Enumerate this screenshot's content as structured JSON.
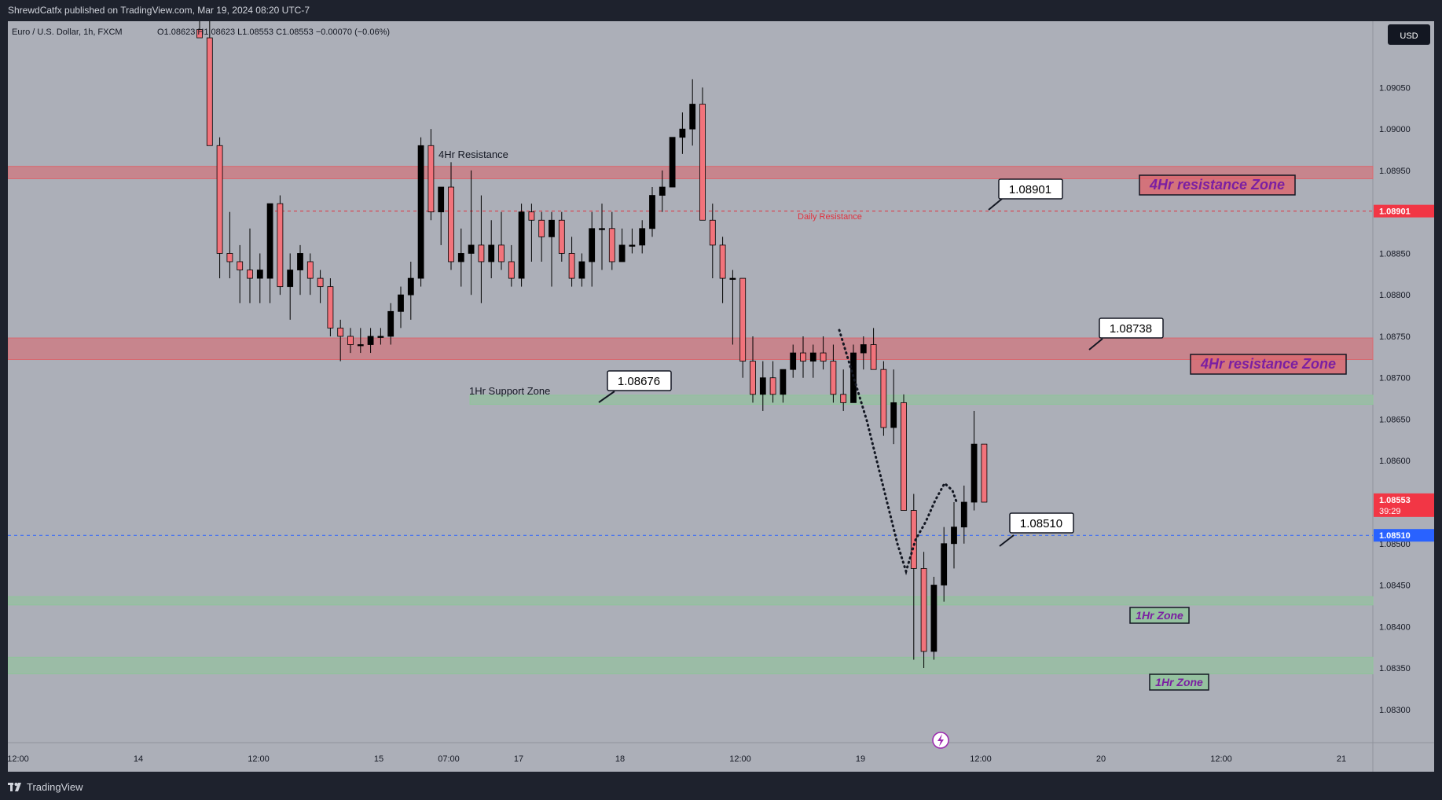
{
  "header": {
    "published": "ShrewdCatfx published on TradingView.com, Mar 19, 2024 08:20 UTC-7",
    "symbol": "Euro / U.S. Dollar, 1h, FXCM",
    "ohlc": "O1.08623  H1.08623  L1.08553  C1.08553  −0.00070 (−0.06%)",
    "currency": "USD"
  },
  "footer": {
    "brand": "TradingView"
  },
  "colors": {
    "bull": "#000000",
    "bear": "#f2737b",
    "resistance": "#d96970",
    "support": "#8fc49a",
    "blue_line": "#2962ff",
    "zone_text": "#7b1fa2"
  },
  "chart_data": {
    "type": "candlestick",
    "title": "Euro / U.S. Dollar, 1h, FXCM",
    "ylim": [
      1.0826,
      1.0913
    ],
    "y_ticks": [
      "1.09050",
      "1.09000",
      "1.08950",
      "1.08900",
      "1.08850",
      "1.08800",
      "1.08750",
      "1.08700",
      "1.08650",
      "1.08600",
      "1.08550",
      "1.08500",
      "1.08450",
      "1.08400",
      "1.08350",
      "1.08300"
    ],
    "x_ticks": [
      "12:00",
      "14",
      "12:00",
      "15",
      "07:00",
      "17",
      "18",
      "12:00",
      "19",
      "12:00",
      "20",
      "12:00",
      "21"
    ],
    "price_tags": [
      {
        "label": "1.08901",
        "price": 1.08901,
        "color": "#f23645"
      },
      {
        "label": "1.08553",
        "sub": "39:29",
        "price": 1.08553,
        "color": "#f23645"
      },
      {
        "label": "1.08510",
        "price": 1.0851,
        "color": "#2962ff"
      }
    ],
    "zones": [
      {
        "label": "4Hr resistance Zone",
        "top": 1.08955,
        "bottom": 1.0894,
        "type": "resistance",
        "tag": "4Hr resistance Zone"
      },
      {
        "label": "4Hr resistance Zone",
        "top": 1.08748,
        "bottom": 1.08722,
        "type": "resistance",
        "tag": "4Hr resistance Zone"
      },
      {
        "label": "1Hr Support Zone",
        "top": 1.08679,
        "bottom": 1.08668,
        "type": "support",
        "tag": ""
      },
      {
        "label": "1Hr Zone",
        "top": 1.08436,
        "bottom": 1.08426,
        "type": "support",
        "tag": "1Hr Zone"
      },
      {
        "label": "1Hr Zone",
        "top": 1.08363,
        "bottom": 1.08343,
        "type": "support",
        "tag": "1Hr Zone"
      }
    ],
    "annotations": {
      "resistance_4hr_text": "4Hr Resistance",
      "daily_resistance_text": "Daily Resistance",
      "support_1hr_text": "1Hr Support Zone",
      "callouts": [
        "1.08901",
        "1.08738",
        "1.08676",
        "1.08510"
      ]
    },
    "candles": [
      {
        "o": 1.0912,
        "h": 1.0913,
        "l": 1.0911,
        "c": 1.0911
      },
      {
        "o": 1.0911,
        "h": 1.0913,
        "l": 1.0898,
        "c": 1.0898
      },
      {
        "o": 1.0898,
        "h": 1.0899,
        "l": 1.0882,
        "c": 1.0885
      },
      {
        "o": 1.0885,
        "h": 1.089,
        "l": 1.0882,
        "c": 1.0884
      },
      {
        "o": 1.0884,
        "h": 1.0886,
        "l": 1.0879,
        "c": 1.0883
      },
      {
        "o": 1.0883,
        "h": 1.0888,
        "l": 1.0879,
        "c": 1.0882
      },
      {
        "o": 1.0882,
        "h": 1.0885,
        "l": 1.0879,
        "c": 1.0883
      },
      {
        "o": 1.0882,
        "h": 1.0891,
        "l": 1.0879,
        "c": 1.0891
      },
      {
        "o": 1.0891,
        "h": 1.0892,
        "l": 1.088,
        "c": 1.0881
      },
      {
        "o": 1.0881,
        "h": 1.0885,
        "l": 1.0877,
        "c": 1.0883
      },
      {
        "o": 1.0883,
        "h": 1.0886,
        "l": 1.088,
        "c": 1.0885
      },
      {
        "o": 1.0884,
        "h": 1.0885,
        "l": 1.088,
        "c": 1.0882
      },
      {
        "o": 1.0882,
        "h": 1.0883,
        "l": 1.0879,
        "c": 1.0881
      },
      {
        "o": 1.0881,
        "h": 1.0882,
        "l": 1.0875,
        "c": 1.0876
      },
      {
        "o": 1.0876,
        "h": 1.0877,
        "l": 1.0872,
        "c": 1.0875
      },
      {
        "o": 1.0875,
        "h": 1.0876,
        "l": 1.0873,
        "c": 1.0874
      },
      {
        "o": 1.0874,
        "h": 1.0876,
        "l": 1.0873,
        "c": 1.0874
      },
      {
        "o": 1.0874,
        "h": 1.0876,
        "l": 1.0873,
        "c": 1.0875
      },
      {
        "o": 1.0875,
        "h": 1.0876,
        "l": 1.0874,
        "c": 1.0875
      },
      {
        "o": 1.0875,
        "h": 1.0879,
        "l": 1.0874,
        "c": 1.0878
      },
      {
        "o": 1.0878,
        "h": 1.0881,
        "l": 1.0876,
        "c": 1.088
      },
      {
        "o": 1.088,
        "h": 1.0884,
        "l": 1.0877,
        "c": 1.0882
      },
      {
        "o": 1.0882,
        "h": 1.0899,
        "l": 1.0881,
        "c": 1.0898
      },
      {
        "o": 1.0898,
        "h": 1.09,
        "l": 1.0889,
        "c": 1.089
      },
      {
        "o": 1.089,
        "h": 1.0893,
        "l": 1.0886,
        "c": 1.0893
      },
      {
        "o": 1.0893,
        "h": 1.0896,
        "l": 1.0883,
        "c": 1.0884
      },
      {
        "o": 1.0884,
        "h": 1.0888,
        "l": 1.0881,
        "c": 1.0885
      },
      {
        "o": 1.0885,
        "h": 1.0895,
        "l": 1.088,
        "c": 1.0886
      },
      {
        "o": 1.0886,
        "h": 1.0892,
        "l": 1.0879,
        "c": 1.0884
      },
      {
        "o": 1.0884,
        "h": 1.0889,
        "l": 1.0882,
        "c": 1.0886
      },
      {
        "o": 1.0886,
        "h": 1.089,
        "l": 1.0883,
        "c": 1.0884
      },
      {
        "o": 1.0884,
        "h": 1.0886,
        "l": 1.0881,
        "c": 1.0882
      },
      {
        "o": 1.0882,
        "h": 1.0891,
        "l": 1.0881,
        "c": 1.089
      },
      {
        "o": 1.089,
        "h": 1.0891,
        "l": 1.0884,
        "c": 1.0889
      },
      {
        "o": 1.0889,
        "h": 1.089,
        "l": 1.0884,
        "c": 1.0887
      },
      {
        "o": 1.0887,
        "h": 1.089,
        "l": 1.0881,
        "c": 1.0889
      },
      {
        "o": 1.0889,
        "h": 1.089,
        "l": 1.0884,
        "c": 1.0885
      },
      {
        "o": 1.0885,
        "h": 1.0887,
        "l": 1.0881,
        "c": 1.0882
      },
      {
        "o": 1.0882,
        "h": 1.0885,
        "l": 1.0881,
        "c": 1.0884
      },
      {
        "o": 1.0884,
        "h": 1.089,
        "l": 1.0881,
        "c": 1.0888
      },
      {
        "o": 1.0888,
        "h": 1.0891,
        "l": 1.0883,
        "c": 1.0888
      },
      {
        "o": 1.0888,
        "h": 1.089,
        "l": 1.0883,
        "c": 1.0884
      },
      {
        "o": 1.0884,
        "h": 1.0888,
        "l": 1.0884,
        "c": 1.0886
      },
      {
        "o": 1.0886,
        "h": 1.0888,
        "l": 1.0885,
        "c": 1.0886
      },
      {
        "o": 1.0886,
        "h": 1.0889,
        "l": 1.0885,
        "c": 1.0888
      },
      {
        "o": 1.0888,
        "h": 1.0893,
        "l": 1.0887,
        "c": 1.0892
      },
      {
        "o": 1.0892,
        "h": 1.0895,
        "l": 1.089,
        "c": 1.0893
      },
      {
        "o": 1.0893,
        "h": 1.0899,
        "l": 1.0893,
        "c": 1.0899
      },
      {
        "o": 1.0899,
        "h": 1.0902,
        "l": 1.0897,
        "c": 1.09
      },
      {
        "o": 1.09,
        "h": 1.0906,
        "l": 1.0898,
        "c": 1.0903
      },
      {
        "o": 1.0903,
        "h": 1.0905,
        "l": 1.0889,
        "c": 1.0889
      },
      {
        "o": 1.0889,
        "h": 1.0891,
        "l": 1.0882,
        "c": 1.0886
      },
      {
        "o": 1.0886,
        "h": 1.0887,
        "l": 1.0879,
        "c": 1.0882
      },
      {
        "o": 1.0882,
        "h": 1.0883,
        "l": 1.0874,
        "c": 1.0882
      },
      {
        "o": 1.0882,
        "h": 1.0882,
        "l": 1.087,
        "c": 1.0872
      },
      {
        "o": 1.0872,
        "h": 1.0875,
        "l": 1.0867,
        "c": 1.0868
      },
      {
        "o": 1.0868,
        "h": 1.0872,
        "l": 1.0866,
        "c": 1.087
      },
      {
        "o": 1.087,
        "h": 1.0872,
        "l": 1.0867,
        "c": 1.0868
      },
      {
        "o": 1.0868,
        "h": 1.0871,
        "l": 1.0867,
        "c": 1.0871
      },
      {
        "o": 1.0871,
        "h": 1.0874,
        "l": 1.087,
        "c": 1.0873
      },
      {
        "o": 1.0873,
        "h": 1.0875,
        "l": 1.087,
        "c": 1.0872
      },
      {
        "o": 1.0872,
        "h": 1.0874,
        "l": 1.087,
        "c": 1.0873
      },
      {
        "o": 1.0873,
        "h": 1.0875,
        "l": 1.0871,
        "c": 1.0872
      },
      {
        "o": 1.0872,
        "h": 1.0874,
        "l": 1.0867,
        "c": 1.0868
      },
      {
        "o": 1.0868,
        "h": 1.0871,
        "l": 1.0866,
        "c": 1.0867
      },
      {
        "o": 1.0867,
        "h": 1.0874,
        "l": 1.0867,
        "c": 1.0873
      },
      {
        "o": 1.0873,
        "h": 1.0875,
        "l": 1.0871,
        "c": 1.0874
      },
      {
        "o": 1.0874,
        "h": 1.0876,
        "l": 1.0871,
        "c": 1.0871
      },
      {
        "o": 1.0871,
        "h": 1.0872,
        "l": 1.0863,
        "c": 1.0864
      },
      {
        "o": 1.0864,
        "h": 1.0871,
        "l": 1.0862,
        "c": 1.0867
      },
      {
        "o": 1.0867,
        "h": 1.0868,
        "l": 1.0854,
        "c": 1.0854
      },
      {
        "o": 1.0854,
        "h": 1.0856,
        "l": 1.0836,
        "c": 1.0847
      },
      {
        "o": 1.0847,
        "h": 1.0849,
        "l": 1.0835,
        "c": 1.0837
      },
      {
        "o": 1.0837,
        "h": 1.0846,
        "l": 1.0836,
        "c": 1.0845
      },
      {
        "o": 1.0845,
        "h": 1.0852,
        "l": 1.0843,
        "c": 1.085
      },
      {
        "o": 1.085,
        "h": 1.0855,
        "l": 1.0847,
        "c": 1.0852
      },
      {
        "o": 1.0852,
        "h": 1.0857,
        "l": 1.085,
        "c": 1.0855
      },
      {
        "o": 1.0855,
        "h": 1.0866,
        "l": 1.0854,
        "c": 1.0862
      },
      {
        "o": 1.0862,
        "h": 1.0862,
        "l": 1.0855,
        "c": 1.0855
      }
    ]
  }
}
